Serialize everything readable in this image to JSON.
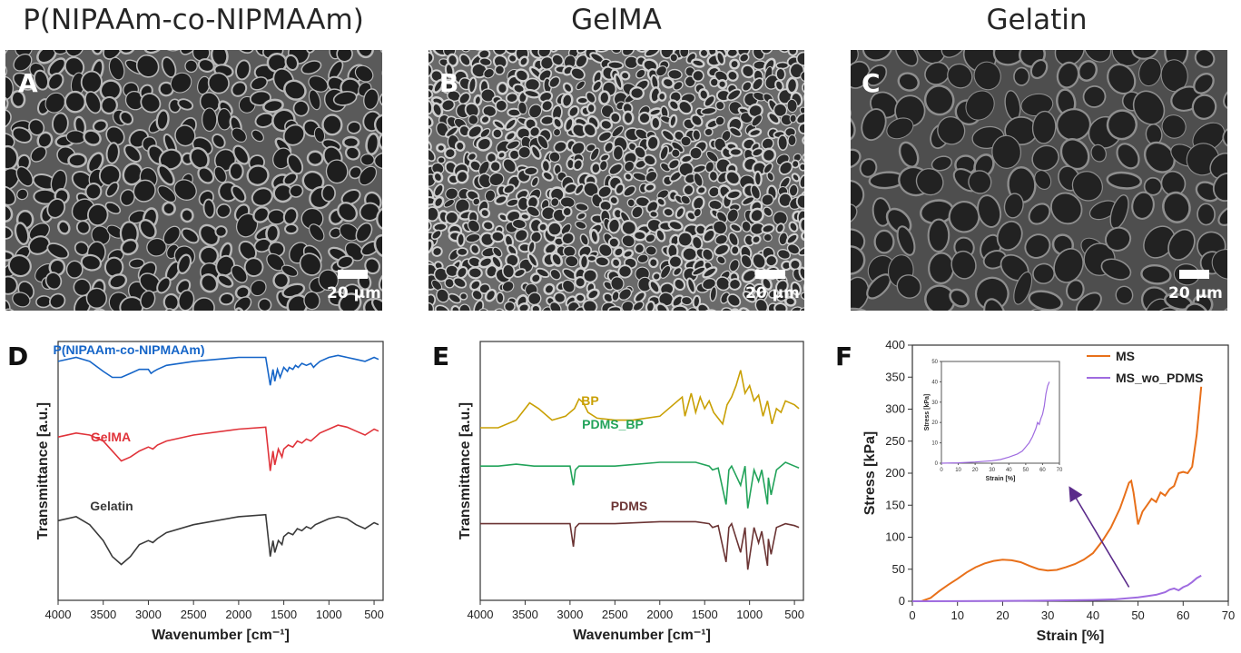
{
  "titles": {
    "a": "P(NIPAAm-co-NIPMAAm)",
    "b": "GelMA",
    "c": "Gelatin"
  },
  "panels": {
    "a": {
      "label": "A",
      "scale_text": "20 µm"
    },
    "b": {
      "label": "B",
      "scale_text": "20 µm"
    },
    "c": {
      "label": "C",
      "scale_text": "20 µm"
    },
    "d": {
      "label": "D"
    },
    "e": {
      "label": "E"
    },
    "f": {
      "label": "F"
    }
  },
  "colors": {
    "blue": "#1565c8",
    "red": "#e0333a",
    "dark": "#3a3a3a",
    "gold": "#c9a004",
    "green": "#22a35a",
    "maroon": "#6b3434",
    "orange": "#e8701a",
    "purple": "#9f6be0"
  },
  "chart_data": [
    {
      "id": "D",
      "type": "line",
      "xlabel": "Wavenumber [cm⁻¹]",
      "ylabel": "Transmittance [a.u.]",
      "xlim": [
        4000,
        400
      ],
      "xticks": [
        "4000",
        "3500",
        "3000",
        "2500",
        "2000",
        "1500",
        "1000",
        "500"
      ],
      "series": [
        {
          "name": "P(NIPAAm-co-NIPMAAm)",
          "color": "#1565c8",
          "x": [
            4000,
            3800,
            3650,
            3500,
            3400,
            3300,
            3200,
            3100,
            3000,
            2970,
            2940,
            2900,
            2800,
            2500,
            2000,
            1700,
            1650,
            1620,
            1600,
            1570,
            1540,
            1500,
            1460,
            1440,
            1400,
            1370,
            1340,
            1300,
            1250,
            1200,
            1170,
            1150,
            1100,
            1000,
            900,
            800,
            700,
            600,
            500,
            450
          ],
          "y": [
            0.9,
            0.92,
            0.9,
            0.85,
            0.82,
            0.82,
            0.84,
            0.86,
            0.86,
            0.84,
            0.85,
            0.86,
            0.88,
            0.9,
            0.92,
            0.92,
            0.78,
            0.86,
            0.8,
            0.86,
            0.82,
            0.87,
            0.85,
            0.87,
            0.86,
            0.88,
            0.87,
            0.89,
            0.88,
            0.89,
            0.87,
            0.88,
            0.9,
            0.92,
            0.93,
            0.92,
            0.91,
            0.9,
            0.92,
            0.91
          ]
        },
        {
          "name": "GelMA",
          "color": "#e0333a",
          "x": [
            4000,
            3800,
            3650,
            3500,
            3400,
            3300,
            3200,
            3100,
            3000,
            2950,
            2900,
            2800,
            2500,
            2000,
            1700,
            1650,
            1620,
            1600,
            1560,
            1520,
            1500,
            1450,
            1400,
            1350,
            1300,
            1250,
            1200,
            1150,
            1100,
            1000,
            900,
            800,
            700,
            600,
            500,
            450
          ],
          "y": [
            0.52,
            0.54,
            0.53,
            0.5,
            0.45,
            0.4,
            0.42,
            0.45,
            0.47,
            0.46,
            0.48,
            0.5,
            0.53,
            0.56,
            0.57,
            0.35,
            0.45,
            0.38,
            0.46,
            0.42,
            0.46,
            0.48,
            0.47,
            0.5,
            0.49,
            0.51,
            0.5,
            0.52,
            0.54,
            0.56,
            0.58,
            0.57,
            0.55,
            0.53,
            0.56,
            0.55
          ]
        },
        {
          "name": "Gelatin",
          "color": "#3a3a3a",
          "x": [
            4000,
            3800,
            3650,
            3500,
            3400,
            3300,
            3200,
            3100,
            3000,
            2950,
            2900,
            2800,
            2500,
            2000,
            1700,
            1650,
            1620,
            1600,
            1560,
            1520,
            1500,
            1450,
            1400,
            1350,
            1300,
            1250,
            1200,
            1150,
            1100,
            1000,
            900,
            800,
            700,
            600,
            500,
            450
          ],
          "y": [
            0.1,
            0.12,
            0.08,
            0.0,
            -0.08,
            -0.12,
            -0.08,
            -0.02,
            0.0,
            -0.01,
            0.01,
            0.04,
            0.08,
            0.12,
            0.13,
            -0.08,
            0.0,
            -0.06,
            0.0,
            -0.02,
            0.02,
            0.04,
            0.03,
            0.06,
            0.05,
            0.07,
            0.06,
            0.08,
            0.09,
            0.11,
            0.12,
            0.11,
            0.08,
            0.06,
            0.09,
            0.08
          ]
        }
      ],
      "annotations": [
        {
          "text": "P(NIPAAm-co-NIPMAAm)",
          "color": "#1565c8"
        },
        {
          "text": "GelMA",
          "color": "#e0333a"
        },
        {
          "text": "Gelatin",
          "color": "#3a3a3a"
        }
      ]
    },
    {
      "id": "E",
      "type": "line",
      "xlabel": "Wavenumber [cm⁻¹]",
      "ylabel": "Transmittance [a.u.]",
      "xlim": [
        4000,
        400
      ],
      "xticks": [
        "4000",
        "3500",
        "3000",
        "2500",
        "2000",
        "1500",
        "1000",
        "500"
      ],
      "series": [
        {
          "name": "BP",
          "color": "#c9a004",
          "x": [
            4000,
            3800,
            3600,
            3450,
            3350,
            3200,
            3050,
            2950,
            2900,
            2850,
            2800,
            2700,
            2500,
            2300,
            2000,
            1750,
            1720,
            1650,
            1600,
            1550,
            1500,
            1450,
            1400,
            1300,
            1250,
            1200,
            1150,
            1100,
            1050,
            1000,
            950,
            900,
            850,
            800,
            750,
            700,
            650,
            600,
            500,
            450
          ],
          "y": [
            0.8,
            0.8,
            0.84,
            0.93,
            0.9,
            0.84,
            0.86,
            0.9,
            0.95,
            0.93,
            0.88,
            0.85,
            0.84,
            0.84,
            0.86,
            0.96,
            0.86,
            0.98,
            0.88,
            0.96,
            0.9,
            0.94,
            0.88,
            0.82,
            0.92,
            0.96,
            1.02,
            1.1,
            0.98,
            1.02,
            0.94,
            0.97,
            0.86,
            0.94,
            0.82,
            0.9,
            0.88,
            0.94,
            0.92,
            0.9
          ]
        },
        {
          "name": "PDMS_BP",
          "color": "#22a35a",
          "x": [
            4000,
            3800,
            3600,
            3400,
            3200,
            3000,
            2962,
            2940,
            2900,
            2500,
            2000,
            1600,
            1450,
            1412,
            1350,
            1262,
            1230,
            1200,
            1100,
            1050,
            1020,
            950,
            900,
            864,
            800,
            790,
            760,
            700,
            600,
            500,
            450
          ],
          "y": [
            0.6,
            0.6,
            0.61,
            0.6,
            0.6,
            0.6,
            0.5,
            0.58,
            0.6,
            0.6,
            0.62,
            0.62,
            0.6,
            0.58,
            0.59,
            0.4,
            0.58,
            0.6,
            0.5,
            0.6,
            0.38,
            0.58,
            0.52,
            0.58,
            0.4,
            0.54,
            0.45,
            0.58,
            0.62,
            0.6,
            0.59
          ]
        },
        {
          "name": "PDMS",
          "color": "#6b3434",
          "x": [
            4000,
            3800,
            3600,
            3400,
            3200,
            3000,
            2962,
            2940,
            2900,
            2500,
            2000,
            1600,
            1450,
            1412,
            1350,
            1262,
            1230,
            1200,
            1100,
            1050,
            1020,
            950,
            900,
            864,
            800,
            790,
            760,
            700,
            600,
            500,
            450
          ],
          "y": [
            0.3,
            0.3,
            0.3,
            0.3,
            0.3,
            0.3,
            0.18,
            0.28,
            0.3,
            0.3,
            0.31,
            0.31,
            0.3,
            0.28,
            0.29,
            0.1,
            0.28,
            0.3,
            0.15,
            0.28,
            0.06,
            0.28,
            0.2,
            0.26,
            0.08,
            0.22,
            0.14,
            0.28,
            0.3,
            0.29,
            0.28
          ]
        }
      ],
      "annotations": [
        {
          "text": "BP",
          "color": "#c9a004"
        },
        {
          "text": "PDMS_BP",
          "color": "#22a35a"
        },
        {
          "text": "PDMS",
          "color": "#6b3434"
        }
      ]
    },
    {
      "id": "F",
      "type": "line",
      "xlabel": "Strain [%]",
      "ylabel": "Stress [kPa]",
      "xlim": [
        0,
        70
      ],
      "ylim": [
        0,
        400
      ],
      "xticks": [
        0,
        10,
        20,
        30,
        40,
        50,
        60,
        70
      ],
      "yticks": [
        0,
        50,
        100,
        150,
        200,
        250,
        300,
        350,
        400
      ],
      "legend_position": "top-right",
      "series": [
        {
          "name": "MS",
          "color": "#e8701a",
          "x": [
            2,
            4,
            6,
            8,
            10,
            12,
            14,
            16,
            18,
            20,
            22,
            24,
            26,
            28,
            30,
            32,
            34,
            36,
            38,
            40,
            42,
            44,
            46,
            47,
            48,
            48.5,
            49,
            50,
            51,
            52,
            53,
            54,
            55,
            56,
            57,
            58,
            59,
            60,
            61,
            62,
            63,
            64
          ],
          "y": [
            0,
            5,
            16,
            26,
            35,
            45,
            53,
            59,
            63,
            65,
            64,
            61,
            55,
            50,
            48,
            49,
            53,
            58,
            65,
            75,
            93,
            115,
            145,
            165,
            185,
            188,
            170,
            120,
            140,
            150,
            160,
            155,
            170,
            165,
            175,
            180,
            200,
            202,
            200,
            210,
            260,
            335
          ]
        },
        {
          "name": "MS_wo_PDMS",
          "color": "#9f6be0",
          "x": [
            0,
            10,
            20,
            30,
            40,
            45,
            50,
            52,
            54,
            56,
            57,
            58,
            59,
            60,
            61,
            62,
            63,
            64
          ],
          "y": [
            0,
            0.2,
            0.5,
            1,
            2,
            3,
            6,
            8,
            10,
            14,
            18,
            20,
            17,
            22,
            25,
            30,
            36,
            40
          ]
        }
      ],
      "inset": {
        "xlabel": "Strain [%]",
        "ylabel": "Stress [kPa]",
        "xlim": [
          0,
          70
        ],
        "ylim": [
          0,
          50
        ],
        "xticks": [
          0,
          10,
          20,
          30,
          40,
          50,
          60,
          70
        ],
        "yticks": [
          0,
          5,
          10,
          15,
          20,
          25,
          30,
          35,
          40,
          45,
          50
        ],
        "series": [
          {
            "name": "MS_wo_PDMS",
            "color": "#9f6be0",
            "x": [
              0,
              10,
              20,
              30,
              35,
              40,
              45,
              48,
              50,
              52,
              54,
              56,
              57,
              58,
              59,
              60,
              61,
              62,
              63,
              64
            ],
            "y": [
              0,
              0.2,
              0.6,
              1.2,
              1.8,
              3,
              4.5,
              6,
              8,
              10,
              13,
              17,
              20,
              19,
              22,
              24,
              28,
              34,
              38,
              40
            ]
          }
        ]
      }
    }
  ]
}
